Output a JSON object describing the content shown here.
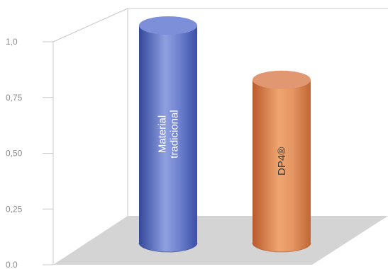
{
  "chart_data": {
    "type": "bar",
    "style": "3d-cylinder",
    "categories": [
      "Material tradicional",
      "DP4®"
    ],
    "category_label_lines": [
      [
        "Material",
        "tradicional"
      ],
      [
        "DP4®"
      ]
    ],
    "values": [
      1.0,
      0.75
    ],
    "ylim": [
      0,
      1
    ],
    "yticks": [
      {
        "value": 0,
        "label": "0.0"
      },
      {
        "value": 0.25,
        "label": "0,25"
      },
      {
        "value": 0.5,
        "label": "0,50"
      },
      {
        "value": 0.75,
        "label": "0,75"
      },
      {
        "value": 1.0,
        "label": "1,0"
      }
    ],
    "colors": {
      "bar_1": "#5a6fc2",
      "bar_2": "#e08a54",
      "floor": "#d4d4d4",
      "axis": "#c8c8c8",
      "bar_1_label": "#ffffff",
      "bar_2_label": "#3a3a3a"
    },
    "title": "",
    "xlabel": "",
    "ylabel": "",
    "legend": "none",
    "grid": false
  }
}
